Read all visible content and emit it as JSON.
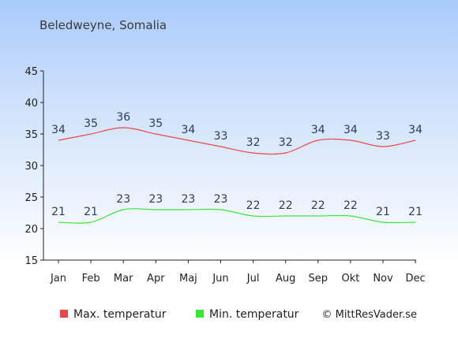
{
  "chart_data": {
    "type": "line",
    "title": "Beledweyne, Somalia",
    "categories": [
      "Jan",
      "Feb",
      "Mar",
      "Apr",
      "Maj",
      "Jun",
      "Jul",
      "Aug",
      "Sep",
      "Okt",
      "Nov",
      "Dec"
    ],
    "series": [
      {
        "name": "Max. temperatur",
        "color": "#e8474c",
        "values": [
          34,
          35,
          36,
          35,
          34,
          33,
          32,
          32,
          34,
          34,
          33,
          34
        ]
      },
      {
        "name": "Min. temperatur",
        "color": "#3ae63a",
        "values": [
          21,
          21,
          23,
          23,
          23,
          23,
          22,
          22,
          22,
          22,
          21,
          21
        ]
      }
    ],
    "yticks": [
      15,
      20,
      25,
      30,
      35,
      40,
      45
    ],
    "ylim": [
      15,
      45
    ],
    "grid": false,
    "legend": "bottom-left"
  },
  "copyright": "© MittResVader.se"
}
